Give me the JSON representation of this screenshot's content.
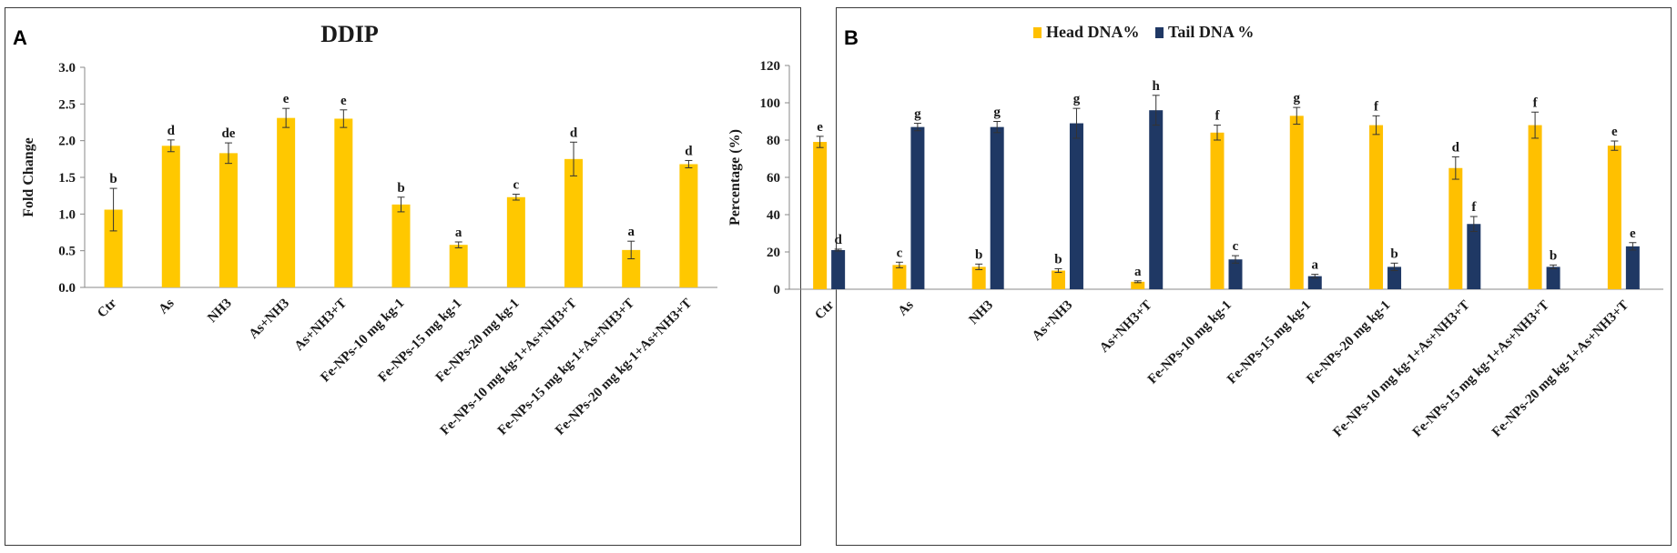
{
  "chart_data": [
    {
      "panel_label": "A",
      "type": "bar",
      "title": "DDIP",
      "xlabel": "",
      "ylabel": "Fold Change",
      "ylim": [
        0.0,
        3.0
      ],
      "yticks": [
        "0.0",
        "0.5",
        "1.0",
        "1.5",
        "2.0",
        "2.5",
        "3.0"
      ],
      "grid": false,
      "categories": [
        "Ctr",
        "As",
        "NH3",
        "As+NH3",
        "As+NH3+T",
        "Fe-NPs-10 mg kg-1",
        "Fe-NPs-15 mg kg-1",
        "Fe-NPs-20 mg kg-1",
        "Fe-NPs-10 mg kg-1+As+NH3+T",
        "Fe-NPs-15 mg kg-1+As+NH3+T",
        "Fe-NPs-20 mg kg-1+As+NH3+T"
      ],
      "series": [
        {
          "name": "DDIP",
          "color": "#FFC800",
          "values": [
            1.06,
            1.93,
            1.83,
            2.31,
            2.3,
            1.13,
            0.58,
            1.23,
            1.75,
            0.51,
            1.68
          ],
          "errors": [
            0.29,
            0.08,
            0.14,
            0.13,
            0.12,
            0.1,
            0.04,
            0.04,
            0.23,
            0.12,
            0.05
          ],
          "letters": [
            "b",
            "d",
            "de",
            "e",
            "e",
            "b",
            "a",
            "c",
            "d",
            "a",
            "d"
          ]
        }
      ]
    },
    {
      "panel_label": "B",
      "type": "bar",
      "title": "",
      "xlabel": "",
      "ylabel": "Percentage (%)",
      "ylim": [
        0,
        120
      ],
      "yticks": [
        "0",
        "20",
        "40",
        "60",
        "80",
        "100",
        "120"
      ],
      "grid": false,
      "legend_position": "top-center",
      "categories": [
        "Ctr",
        "As",
        "NH3",
        "As+NH3",
        "As+NH3+T",
        "Fe-NPs-10 mg kg-1",
        "Fe-NPs-15 mg kg-1",
        "Fe-NPs-20 mg kg-1",
        "Fe-NPs-10 mg kg-1+As+NH3+T",
        "Fe-NPs-15 mg kg-1+As+NH3+T",
        "Fe-NPs-20 mg kg-1+As+NH3+T"
      ],
      "series": [
        {
          "name": "Head DNA%",
          "color": "#FFC000",
          "values": [
            79,
            13,
            12,
            10,
            4,
            84,
            93,
            88,
            65,
            88,
            77
          ],
          "errors": [
            3,
            1.5,
            1.5,
            1,
            0.5,
            4,
            4.5,
            5,
            6,
            7,
            2.5
          ],
          "letters": [
            "e",
            "c",
            "b",
            "b",
            "a",
            "f",
            "g",
            "f",
            "d",
            "f",
            "e"
          ]
        },
        {
          "name": "Tail DNA %",
          "color": "#1F3864",
          "values": [
            21,
            87,
            87,
            89,
            96,
            16,
            7,
            12,
            35,
            12,
            23
          ],
          "errors": [
            0.5,
            2,
            3,
            8,
            8,
            2,
            1,
            2,
            4,
            1,
            2
          ],
          "letters": [
            "d",
            "g",
            "g",
            "g",
            "h",
            "c",
            "a",
            "b",
            "f",
            "b",
            "e"
          ]
        }
      ]
    }
  ]
}
